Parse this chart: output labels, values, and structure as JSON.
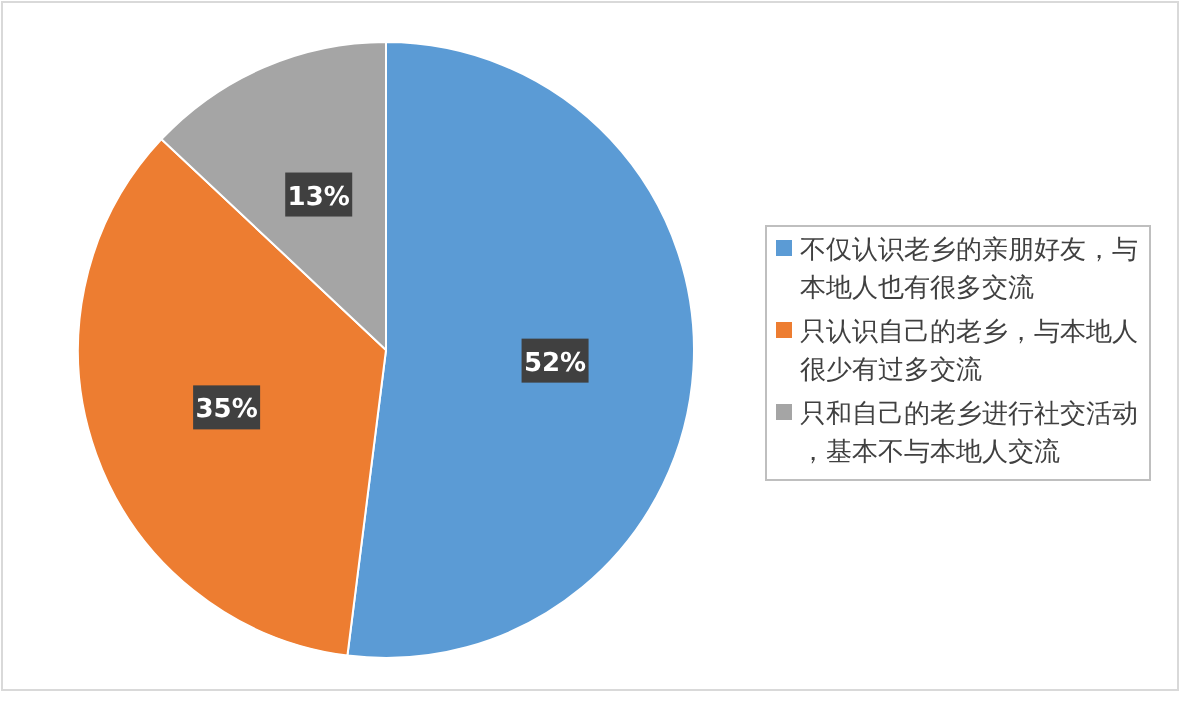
{
  "chart_data": {
    "type": "pie",
    "categories": [
      "不仅认识老乡的亲朋好友，与本地人也有很多交流",
      "只认识自己的老乡，与本地人很少有过多交流",
      "只和自己的老乡进行社交活动，基本不与本地人交流"
    ],
    "values": [
      52,
      35,
      13
    ],
    "colors": [
      "#5b9bd5",
      "#ed7d31",
      "#a5a5a5"
    ],
    "value_labels": [
      "52%",
      "35%",
      "13%"
    ],
    "legend": "right"
  }
}
